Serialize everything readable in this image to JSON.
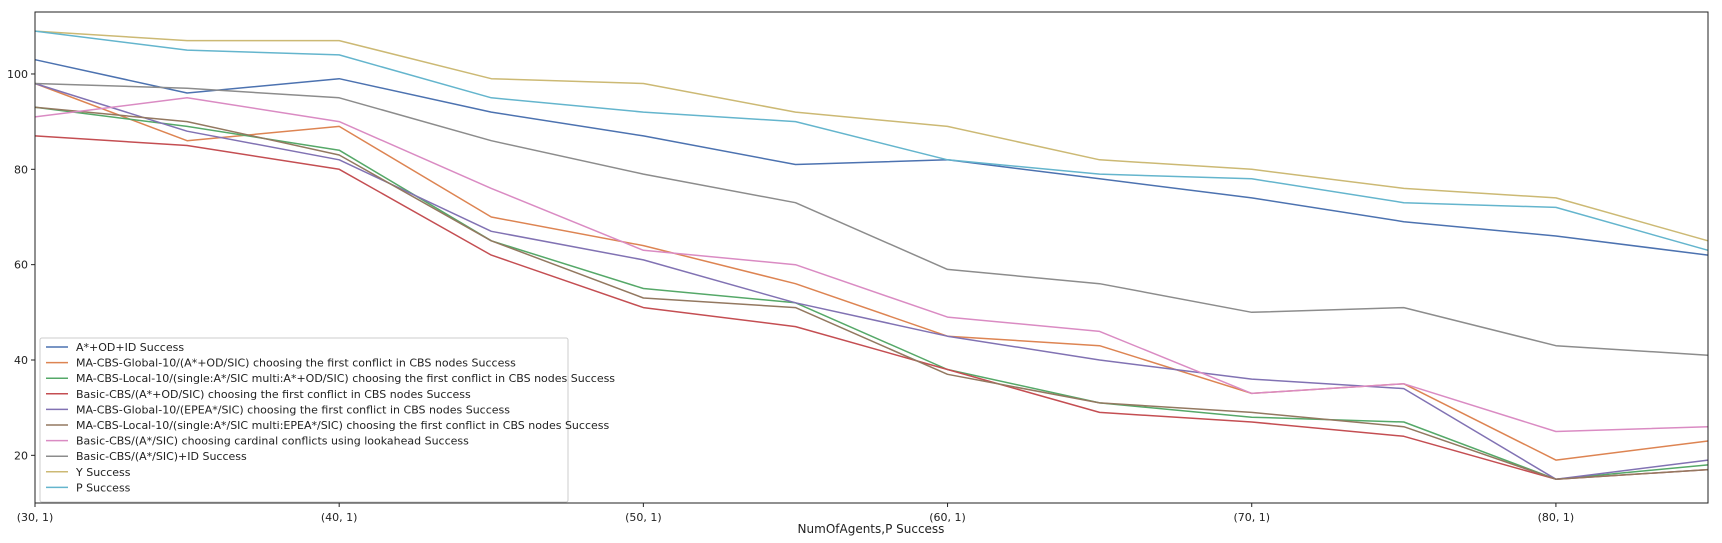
{
  "chart_data": {
    "type": "line",
    "xlabel": "NumOfAgents,P Success",
    "ylabel": "",
    "x": [
      30,
      35,
      40,
      45,
      50,
      55,
      60,
      65,
      70,
      75,
      80,
      85
    ],
    "xticks": [
      {
        "x": 30,
        "label": "(30, 1)"
      },
      {
        "x": 40,
        "label": "(40, 1)"
      },
      {
        "x": 50,
        "label": "(50, 1)"
      },
      {
        "x": 60,
        "label": "(60, 1)"
      },
      {
        "x": 70,
        "label": "(70, 1)"
      },
      {
        "x": 80,
        "label": "(80, 1)"
      }
    ],
    "xlim": [
      30,
      85
    ],
    "ylim": [
      10,
      113
    ],
    "yticks": [
      20,
      40,
      60,
      80,
      100
    ],
    "grid": false,
    "legend_position": "lower-left",
    "series": [
      {
        "name": "A*+OD+ID Success",
        "color": "#4c72b0",
        "values": [
          103,
          96,
          99,
          92,
          87,
          81,
          82,
          78,
          74,
          69,
          66,
          62
        ]
      },
      {
        "name": "MA-CBS-Global-10/(A*+OD/SIC) choosing the first conflict in CBS nodes Success",
        "color": "#dd8452",
        "values": [
          98,
          86,
          89,
          70,
          64,
          56,
          45,
          43,
          33,
          35,
          19,
          23
        ]
      },
      {
        "name": "MA-CBS-Local-10/(single:A*/SIC multi:A*+OD/SIC) choosing the first conflict in CBS nodes Success",
        "color": "#55a868",
        "values": [
          93,
          89,
          84,
          65,
          55,
          52,
          38,
          31,
          28,
          27,
          15,
          18
        ]
      },
      {
        "name": "Basic-CBS/(A*+OD/SIC) choosing the first conflict in CBS nodes Success",
        "color": "#c44e52",
        "values": [
          87,
          85,
          80,
          62,
          51,
          47,
          38,
          29,
          27,
          24,
          15,
          17
        ]
      },
      {
        "name": "MA-CBS-Global-10/(EPEA*/SIC) choosing the first conflict in CBS nodes Success",
        "color": "#8172b3",
        "values": [
          98,
          88,
          82,
          67,
          61,
          52,
          45,
          40,
          36,
          34,
          15,
          19
        ]
      },
      {
        "name": "MA-CBS-Local-10/(single:A*/SIC multi:EPEA*/SIC) choosing the first conflict in CBS nodes Success",
        "color": "#937860",
        "values": [
          93,
          90,
          83,
          65,
          53,
          51,
          37,
          31,
          29,
          26,
          15,
          17
        ]
      },
      {
        "name": "Basic-CBS/(A*/SIC) choosing cardinal conflicts using lookahead Success",
        "color": "#da8bc3",
        "values": [
          91,
          95,
          90,
          76,
          63,
          60,
          49,
          46,
          33,
          35,
          25,
          26
        ]
      },
      {
        "name": "Basic-CBS/(A*/SIC)+ID Success",
        "color": "#8c8c8c",
        "values": [
          98,
          97,
          95,
          86,
          79,
          73,
          59,
          56,
          50,
          51,
          43,
          41
        ]
      },
      {
        "name": "Y Success",
        "color": "#ccb974",
        "values": [
          109,
          107,
          107,
          99,
          98,
          92,
          89,
          82,
          80,
          76,
          74,
          65
        ]
      },
      {
        "name": "P Success",
        "color": "#64b5cd",
        "values": [
          109,
          105,
          104,
          95,
          92,
          90,
          82,
          79,
          78,
          73,
          72,
          63
        ]
      }
    ]
  }
}
